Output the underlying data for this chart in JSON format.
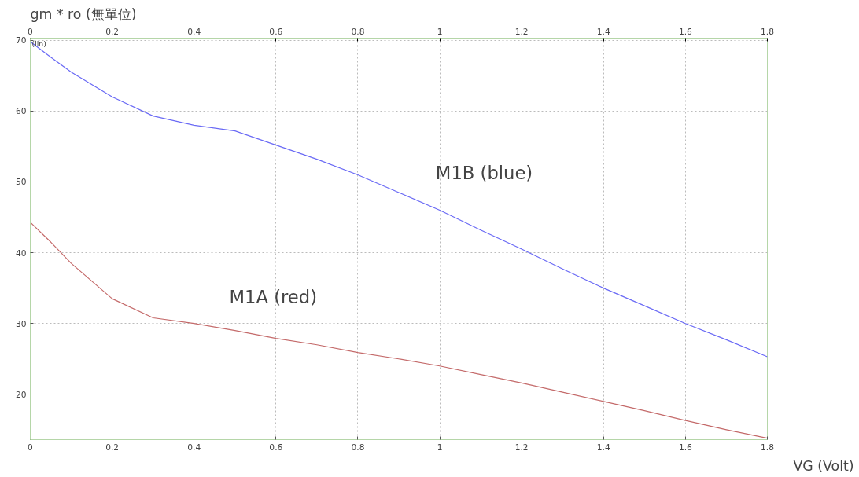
{
  "chart_data": {
    "type": "line",
    "title": "gm * ro  (無單位)",
    "xlabel": "VG (Volt)",
    "annotations": [
      "(lin)"
    ],
    "x": [
      0,
      0.05,
      0.1,
      0.2,
      0.3,
      0.4,
      0.5,
      0.6,
      0.7,
      0.8,
      0.9,
      1.0,
      1.1,
      1.2,
      1.3,
      1.4,
      1.5,
      1.6,
      1.7,
      1.8
    ],
    "series": [
      {
        "name": "M1B (blue)",
        "color": "#6a6af5",
        "values": [
          69.8,
          67.6,
          65.5,
          62,
          59.3,
          58,
          57.2,
          55.2,
          53.2,
          51,
          48.5,
          46,
          43.2,
          40.5,
          37.7,
          35,
          32.5,
          30,
          27.7,
          25.3
        ]
      },
      {
        "name": "M1A (red)",
        "color": "#c46a6a",
        "values": [
          44.3,
          41.5,
          38.5,
          33.5,
          30.8,
          30,
          29,
          27.9,
          27,
          25.9,
          25,
          24,
          22.8,
          21.6,
          20.3,
          19,
          17.7,
          16.3,
          15,
          13.8
        ]
      }
    ],
    "xlim": [
      0,
      1.8
    ],
    "ylim": [
      13.6,
      70.3
    ],
    "xticks": [
      0,
      0.2,
      0.4,
      0.6,
      0.8,
      1,
      1.2,
      1.4,
      1.6,
      1.8
    ],
    "x2lim": [
      0,
      1.8
    ],
    "x2ticks": [
      0,
      0.2,
      0.4,
      0.6,
      0.8,
      1,
      1.2,
      1.4,
      1.6,
      1.8
    ],
    "yticks": [
      20,
      30,
      40,
      50,
      60,
      70
    ],
    "grid": true,
    "marker": "none",
    "line_style": "solid"
  }
}
